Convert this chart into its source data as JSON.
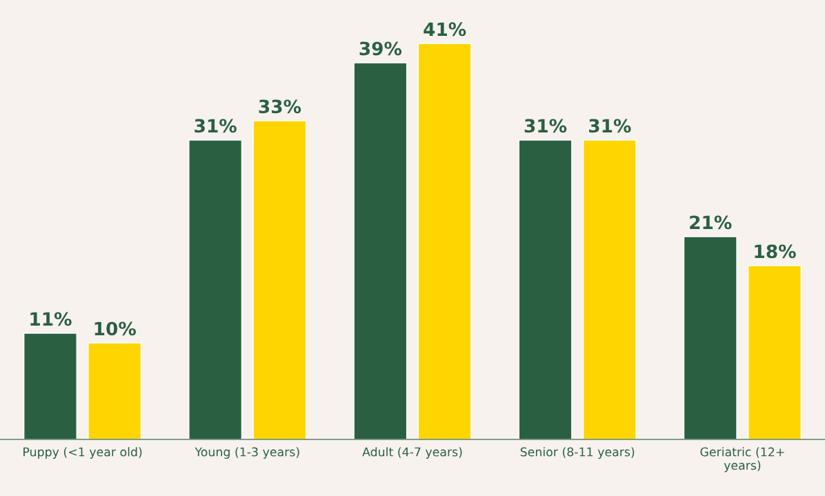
{
  "chart_data": {
    "type": "bar",
    "categories": [
      "Puppy (<1 year old)",
      "Young (1-3 years)",
      "Adult (4-7 years)",
      "Senior (8-11 years)",
      "Geriatric (12+\nyears)"
    ],
    "series": [
      {
        "color": "#2a6041",
        "values": [
          11,
          31,
          39,
          31,
          21
        ],
        "value_labels": [
          "11%",
          "31%",
          "39%",
          "31%",
          "21%"
        ]
      },
      {
        "color": "#ffd500",
        "values": [
          10,
          33,
          41,
          31,
          18
        ],
        "value_labels": [
          "10%",
          "33%",
          "41%",
          "31%",
          "18%"
        ]
      }
    ],
    "ylim": [
      0,
      45.5
    ],
    "tick_labels": "x",
    "grid": false,
    "legend": false
  }
}
